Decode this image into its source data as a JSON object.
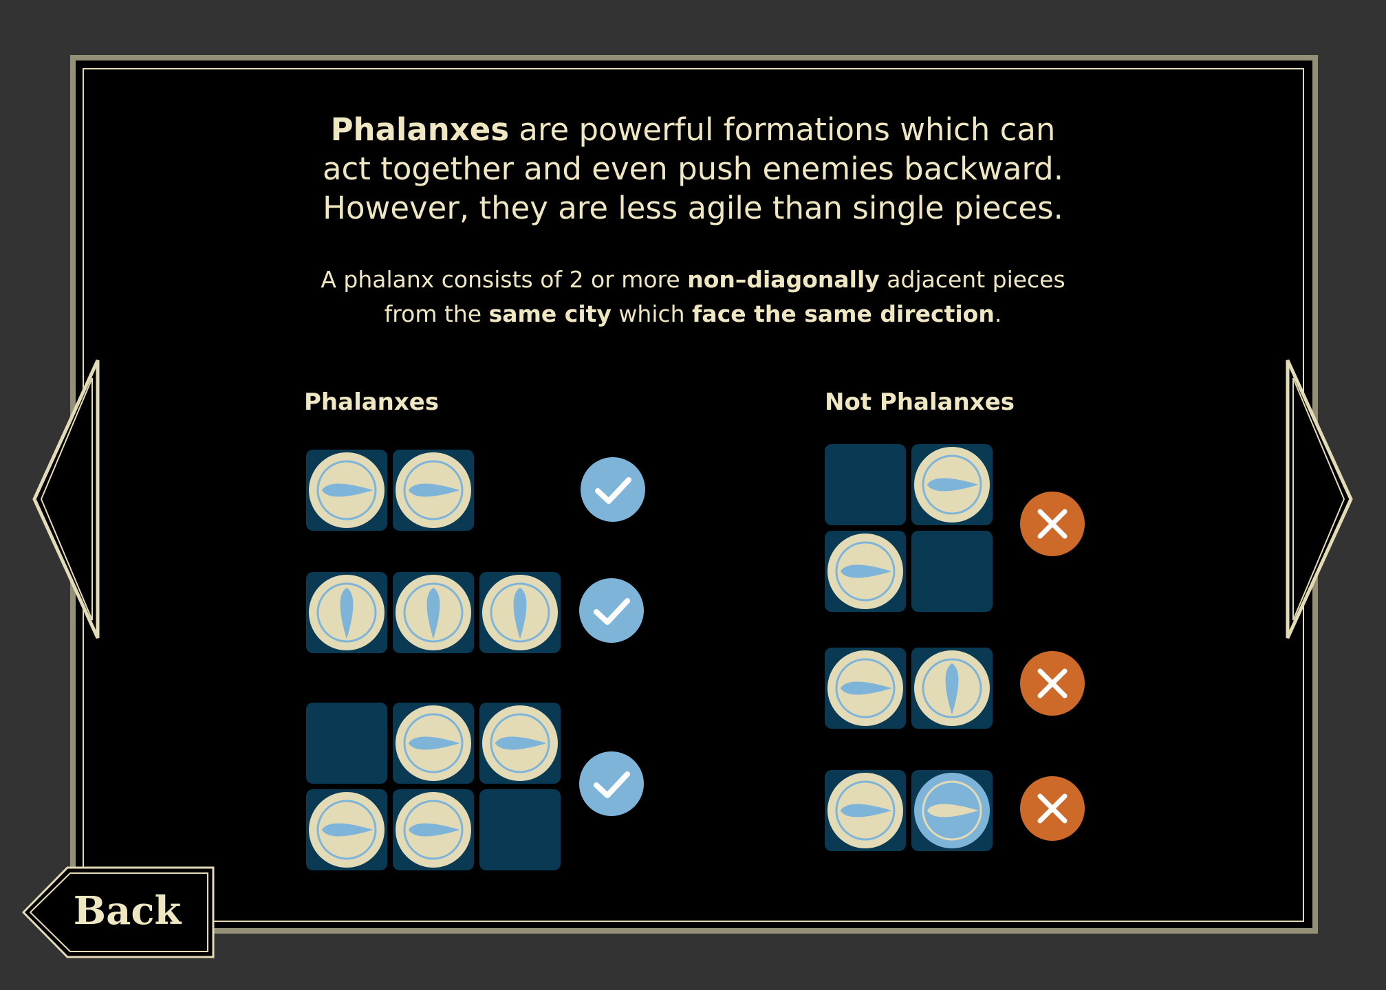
{
  "intro": {
    "bold_word": "Phalanxes",
    "line1_rest": " are powerful formations which can",
    "line2": "act together and even push enemies backward.",
    "line3": "However, they are less agile than single pieces."
  },
  "rule": {
    "p1": "A phalanx consists of 2 or more ",
    "b1": "non–diagonally",
    "p2": " adjacent pieces",
    "p3": "from the ",
    "b2": "same city",
    "p4": " which ",
    "b3": "face the same direction",
    "p5": "."
  },
  "columns": {
    "left_title": "Phalanxes",
    "right_title": "Not Phalanxes"
  },
  "buttons": {
    "back_label": "Back"
  },
  "icons": {
    "prev": "arrow-left-icon",
    "next": "arrow-right-icon",
    "valid": "checkmark-icon",
    "invalid": "cross-icon",
    "piece": "shield-spear-icon"
  },
  "colors": {
    "background": "#333333",
    "panel": "#000000",
    "frame": "#948f77",
    "text": "#efe6c2",
    "tile": "#0a3a53",
    "piece": "#e3dbb6",
    "piece_alt": "#7fb4d9",
    "check": "#7fb4d9",
    "cross": "#cd6a2a"
  }
}
